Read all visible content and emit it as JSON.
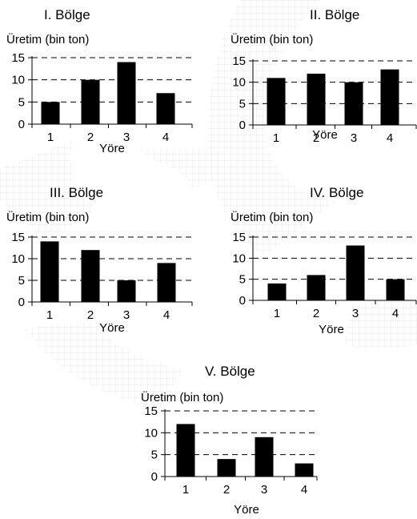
{
  "chart_data": [
    {
      "type": "bar",
      "title": "I. Bölge",
      "ylabel": "Üretim (bin ton)",
      "xlabel": "Yöre",
      "categories": [
        "1",
        "2",
        "3",
        "4"
      ],
      "values": [
        5,
        10,
        14,
        7
      ],
      "ylim": [
        0,
        15
      ],
      "yticks": [
        0,
        5,
        10,
        15
      ],
      "grid": "dashed-horizontal"
    },
    {
      "type": "bar",
      "title": "II. Bölge",
      "ylabel": "Üretim (bin ton)",
      "xlabel": "Yöre",
      "categories": [
        "1",
        "2",
        "3",
        "4"
      ],
      "values": [
        11,
        12,
        10,
        13
      ],
      "ylim": [
        0,
        15
      ],
      "yticks": [
        0,
        5,
        10,
        15
      ],
      "grid": "dashed-horizontal"
    },
    {
      "type": "bar",
      "title": "III. Bölge",
      "ylabel": "Üretim (bin ton)",
      "xlabel": "Yöre",
      "categories": [
        "1",
        "2",
        "3",
        "4"
      ],
      "values": [
        14,
        12,
        5,
        9
      ],
      "ylim": [
        0,
        15
      ],
      "yticks": [
        0,
        5,
        10,
        15
      ],
      "grid": "dashed-horizontal"
    },
    {
      "type": "bar",
      "title": "IV. Bölge",
      "ylabel": "Üretim (bin ton)",
      "xlabel": "Yöre",
      "categories": [
        "1",
        "2",
        "3",
        "4"
      ],
      "values": [
        4,
        6,
        13,
        5
      ],
      "ylim": [
        0,
        15
      ],
      "yticks": [
        0,
        5,
        10,
        15
      ],
      "grid": "dashed-horizontal"
    },
    {
      "type": "bar",
      "title": "V. Bölge",
      "ylabel": "Üretim (bin ton)",
      "xlabel": "Yöre",
      "categories": [
        "1",
        "2",
        "3",
        "4"
      ],
      "values": [
        12,
        4,
        9,
        3
      ],
      "ylim": [
        0,
        15
      ],
      "yticks": [
        0,
        5,
        10,
        15
      ],
      "grid": "dashed-horizontal"
    }
  ],
  "colors": {
    "bar": "#000000",
    "grid": "#000000",
    "watermark": "#dcdcdc"
  }
}
